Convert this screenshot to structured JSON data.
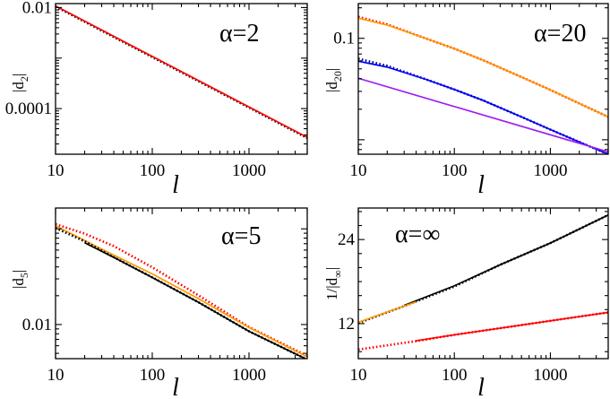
{
  "colors": {
    "red": "#ff0000",
    "orange": "#ff9a00",
    "black": "#000000",
    "navy": "#000080",
    "blue": "#0000ff",
    "violet": "#a020f0"
  },
  "chart_data": [
    {
      "type": "line",
      "id": "alpha2",
      "annotation": "α=2",
      "xscale": "log",
      "yscale": "log",
      "xlim": [
        10,
        4000
      ],
      "ylim": [
        1.25e-05,
        0.012
      ],
      "xticks": [
        10,
        100,
        1000
      ],
      "xtick_labels": [
        "10",
        "100",
        "1000"
      ],
      "xlabel": "l",
      "yticks": [
        0.01,
        0.0001
      ],
      "ytick_labels": [
        "0.01",
        "0.0001"
      ],
      "ylabel_main": "|d",
      "ylabel_sub": "2",
      "ylabel_tail": "|",
      "series": [
        {
          "name": "data",
          "style": "dotted",
          "color": "#000000",
          "x": [
            10,
            20,
            40,
            100,
            300,
            1000,
            4000
          ],
          "y": [
            0.0105,
            0.00525,
            0.00262,
            0.00105,
            0.00035,
            0.000105,
            2.62e-05
          ]
        },
        {
          "name": "fit",
          "style": "solid",
          "color": "#ff0000",
          "x": [
            10,
            20,
            40,
            100,
            300,
            1000,
            4000
          ],
          "y": [
            0.0108,
            0.0054,
            0.0027,
            0.00108,
            0.00036,
            0.000108,
            2.7e-05
          ]
        }
      ]
    },
    {
      "type": "line",
      "id": "alpha20",
      "annotation": "α=20",
      "xscale": "log",
      "yscale": "log",
      "xlim": [
        10,
        4000
      ],
      "ylim": [
        0.0072,
        0.22
      ],
      "xticks": [
        10,
        100,
        1000
      ],
      "xtick_labels": [
        "10",
        "100",
        "1000"
      ],
      "xlabel": "l",
      "yticks": [
        0.1
      ],
      "ytick_labels": [
        "0.1"
      ],
      "ylabel_main": "|d",
      "ylabel_sub": "20",
      "ylabel_tail": "|",
      "series": [
        {
          "name": "upper data",
          "style": "dotted",
          "color": "#ff0000",
          "x": [
            10,
            20,
            50,
            100,
            200,
            500,
            1000,
            2000,
            4000
          ],
          "y": [
            0.163,
            0.137,
            0.1,
            0.0791,
            0.0608,
            0.0415,
            0.031,
            0.0228,
            0.0168
          ]
        },
        {
          "name": "upper fit",
          "style": "solid",
          "color": "#ff9a00",
          "x": [
            10,
            20,
            50,
            100,
            200,
            500,
            1000,
            2000,
            4000
          ],
          "y": [
            0.158,
            0.135,
            0.1,
            0.0791,
            0.0608,
            0.0415,
            0.031,
            0.0228,
            0.0168
          ]
        },
        {
          "name": "lower data",
          "style": "dotted",
          "color": "#000080",
          "x": [
            10,
            20,
            50,
            100,
            200,
            500,
            1000,
            2000,
            4000
          ],
          "y": [
            0.063,
            0.0535,
            0.0396,
            0.0313,
            0.0244,
            0.0168,
            0.0126,
            0.0095,
            0.0072
          ]
        },
        {
          "name": "lower fit",
          "style": "solid",
          "color": "#0000ff",
          "x": [
            10,
            20,
            50,
            100,
            200,
            500,
            1000,
            2000,
            4000
          ],
          "y": [
            0.0595,
            0.052,
            0.0395,
            0.0313,
            0.0244,
            0.0168,
            0.0126,
            0.0095,
            0.0072
          ]
        },
        {
          "name": "asymptote",
          "style": "solid",
          "color": "#a020f0",
          "x": [
            10,
            4000
          ],
          "y": [
            0.0404,
            0.0076
          ]
        }
      ]
    },
    {
      "type": "line",
      "id": "alpha5",
      "annotation": "α=5",
      "xscale": "log",
      "yscale": "log",
      "xlim": [
        10,
        4000
      ],
      "ylim": [
        0.0044,
        0.165
      ],
      "xticks": [
        10,
        100,
        1000
      ],
      "xtick_labels": [
        "10",
        "100",
        "1000"
      ],
      "xlabel": "l",
      "yticks": [
        0.01
      ],
      "ytick_labels": [
        "0.01"
      ],
      "ylabel_main": "|d",
      "ylabel_sub": "5",
      "ylabel_tail": "|",
      "series": [
        {
          "name": "data A",
          "style": "dotted",
          "color": "#ff0000",
          "x": [
            10,
            20,
            40,
            100,
            300,
            1000,
            4000
          ],
          "y": [
            0.112,
            0.089,
            0.066,
            0.0396,
            0.0202,
            0.0094,
            0.0047
          ]
        },
        {
          "name": "fit A",
          "style": "solid",
          "color": "#ff9a00",
          "x": [
            10,
            20,
            40,
            100,
            300,
            1000,
            4000
          ],
          "y": [
            0.108,
            0.0755,
            0.0531,
            0.0338,
            0.0186,
            0.0093,
            0.0046
          ]
        },
        {
          "name": "data B",
          "style": "dotted",
          "color": "#000000",
          "x": [
            10,
            20,
            40,
            100,
            300,
            1000,
            4000
          ],
          "y": [
            0.102,
            0.074,
            0.0505,
            0.0311,
            0.0171,
            0.0085,
            0.0043
          ]
        },
        {
          "name": "fit B",
          "style": "solid",
          "color": "#000000",
          "x": [
            20,
            40,
            100,
            300,
            1000,
            4000
          ],
          "y": [
            0.0715,
            0.0503,
            0.031,
            0.0171,
            0.0085,
            0.0043
          ]
        }
      ]
    },
    {
      "type": "line",
      "id": "alphainf",
      "annotation": "α=∞",
      "xscale": "log",
      "yscale": "linear",
      "xlim": [
        10,
        4000
      ],
      "ylim": [
        7,
        28.5
      ],
      "xticks": [
        10,
        100,
        1000
      ],
      "xtick_labels": [
        "10",
        "100",
        "1000"
      ],
      "xlabel": "l",
      "yticks": [
        12,
        24
      ],
      "ytick_labels": [
        "12",
        "24"
      ],
      "ylabel_main": "1/|d",
      "ylabel_sub": "∞",
      "ylabel_tail": "|",
      "series": [
        {
          "name": "upper data",
          "style": "dotted",
          "color": "#000000",
          "x": [
            10,
            30,
            100,
            300,
            1000,
            4000
          ],
          "y": [
            12.1,
            14.5,
            17.3,
            20.4,
            23.5,
            27.5
          ]
        },
        {
          "name": "upper fit",
          "style": "solid",
          "color": "#000000",
          "x": [
            30,
            100,
            300,
            1000,
            4000
          ],
          "y": [
            14.6,
            17.4,
            20.4,
            23.5,
            27.5
          ]
        },
        {
          "name": "upper fit near",
          "style": "solid",
          "color": "#ff9a00",
          "x": [
            10,
            40
          ],
          "y": [
            12.2,
            15.1
          ]
        },
        {
          "name": "lower data",
          "style": "dotted",
          "color": "#ff0000",
          "x": [
            10,
            40,
            100,
            400,
            1000,
            4000
          ],
          "y": [
            8.3,
            9.5,
            10.4,
            11.6,
            12.4,
            13.6
          ]
        },
        {
          "name": "lower fit",
          "style": "solid",
          "color": "#ff0000",
          "x": [
            40,
            100,
            400,
            1000,
            4000
          ],
          "y": [
            9.55,
            10.4,
            11.6,
            12.4,
            13.6
          ]
        }
      ]
    }
  ]
}
